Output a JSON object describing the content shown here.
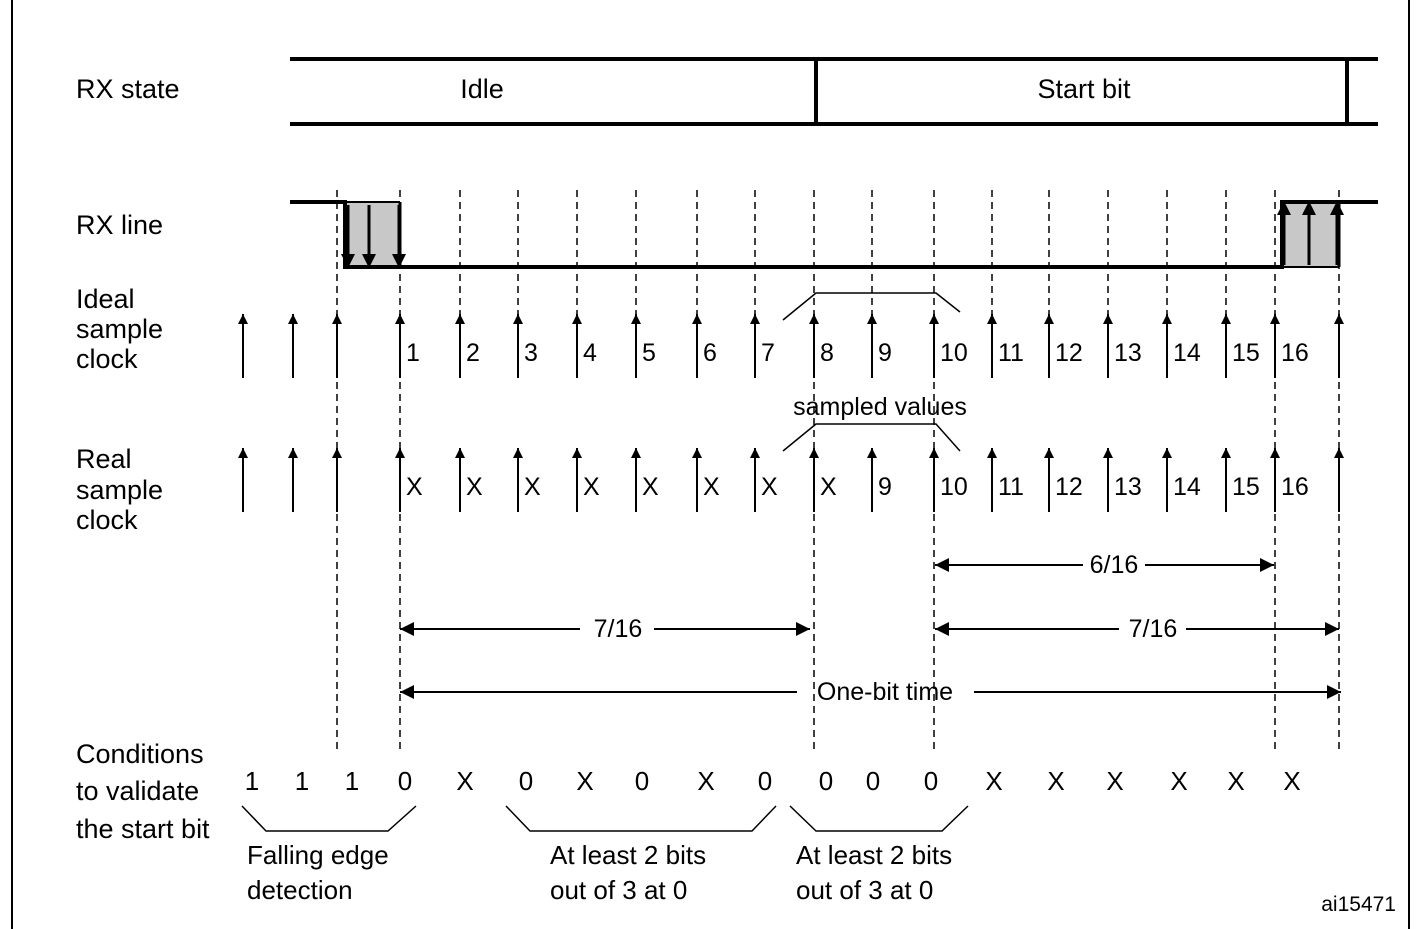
{
  "diagram": {
    "row_labels": {
      "rx_state": "RX state",
      "rx_line": "RX line",
      "ideal_clock": [
        "Ideal",
        "sample",
        "clock"
      ],
      "real_clock": [
        "Real",
        "sample",
        "clock"
      ],
      "conditions": [
        "Conditions",
        "to validate",
        "the start bit"
      ]
    },
    "rx_states": [
      "Idle",
      "Start bit"
    ],
    "ideal_sample_labels": [
      "1",
      "2",
      "3",
      "4",
      "5",
      "6",
      "7",
      "8",
      "9",
      "10",
      "11",
      "12",
      "13",
      "14",
      "15",
      "16"
    ],
    "real_sample_labels": [
      "X",
      "X",
      "X",
      "X",
      "X",
      "X",
      "X",
      "X",
      "9",
      "10",
      "11",
      "12",
      "13",
      "14",
      "15",
      "16"
    ],
    "sampled_values_label": "sampled values",
    "intervals": [
      {
        "label": "6/16"
      },
      {
        "label": "7/16"
      },
      {
        "label": "7/16"
      },
      {
        "label": "One-bit time"
      }
    ],
    "conditions_values": [
      "1",
      "1",
      "1",
      "0",
      "X",
      "0",
      "X",
      "0",
      "X",
      "0",
      "0",
      "0",
      "0",
      "X",
      "X",
      "X",
      "X",
      "X",
      "X"
    ],
    "condition_groups": [
      {
        "lines": [
          "Falling edge",
          "detection"
        ]
      },
      {
        "lines": [
          "At least 2 bits",
          "out of 3 at 0"
        ]
      },
      {
        "lines": [
          "At least 2 bits",
          "out of 3 at 0"
        ]
      }
    ],
    "figure_id": "ai15471"
  }
}
